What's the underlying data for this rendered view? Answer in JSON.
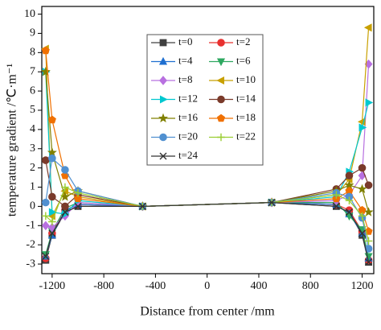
{
  "chart_data": {
    "type": "line",
    "x_label": "Distance from center /mm",
    "y_label": "temperature gradient /℃·m⁻¹",
    "x": [
      -1250,
      -1200,
      -1100,
      -1000,
      -500,
      500,
      1000,
      1100,
      1200,
      1250
    ],
    "xlim": [
      -1280,
      1290
    ],
    "xticks": [
      -1200,
      -800,
      -400,
      0,
      400,
      800,
      1200
    ],
    "ylim": [
      -3.5,
      10.4
    ],
    "yticks": [
      -3,
      -2,
      -1,
      0,
      1,
      2,
      3,
      4,
      5,
      6,
      7,
      8,
      9,
      10
    ],
    "series": [
      {
        "name": "t=0",
        "color": "#404040",
        "marker": "square",
        "values": [
          -2.8,
          -1.5,
          -0.3,
          0.0,
          0,
          0.2,
          0.0,
          -0.3,
          -1.5,
          -2.9
        ]
      },
      {
        "name": "t=2",
        "color": "#e8302f",
        "marker": "circle",
        "values": [
          -2.7,
          -1.4,
          -0.2,
          0.1,
          0,
          0.2,
          0.1,
          -0.2,
          -1.3,
          -2.8
        ]
      },
      {
        "name": "t=4",
        "color": "#1f6fd0",
        "marker": "triangle-up",
        "values": [
          -2.6,
          -1.5,
          -0.2,
          0.1,
          0,
          0.2,
          0.1,
          -0.4,
          -1.4,
          -2.7
        ]
      },
      {
        "name": "t=6",
        "color": "#2ea860",
        "marker": "triangle-down",
        "values": [
          -2.5,
          -1.3,
          -0.1,
          0.2,
          0,
          0.2,
          0.2,
          -0.5,
          -1.2,
          -2.6
        ]
      },
      {
        "name": "t=8",
        "color": "#b870e0",
        "marker": "diamond",
        "values": [
          -1.0,
          -1.1,
          -0.5,
          0.2,
          0,
          0.2,
          0.3,
          0.6,
          1.6,
          7.4
        ]
      },
      {
        "name": "t=10",
        "color": "#c8a000",
        "marker": "triangle-left",
        "values": [
          8.2,
          -0.5,
          0.8,
          0.5,
          0,
          0.2,
          0.6,
          1.4,
          4.4,
          9.3
        ]
      },
      {
        "name": "t=12",
        "color": "#00c8d0",
        "marker": "triangle-right",
        "values": [
          7.0,
          -0.3,
          -0.4,
          0.3,
          0,
          0.2,
          0.5,
          1.8,
          4.1,
          5.4
        ]
      },
      {
        "name": "t=14",
        "color": "#7a3a2a",
        "marker": "circle",
        "values": [
          2.4,
          0.5,
          0.0,
          0.6,
          0,
          0.2,
          0.9,
          1.6,
          2.0,
          1.1
        ]
      },
      {
        "name": "t=16",
        "color": "#808000",
        "marker": "star",
        "values": [
          7.0,
          2.8,
          0.5,
          0.8,
          0,
          0.2,
          0.8,
          1.1,
          0.9,
          -0.3
        ]
      },
      {
        "name": "t=18",
        "color": "#f07000",
        "marker": "pentagon",
        "values": [
          8.1,
          4.5,
          1.6,
          0.4,
          0,
          0.2,
          0.4,
          0.8,
          -0.2,
          -1.3
        ]
      },
      {
        "name": "t=20",
        "color": "#5090d0",
        "marker": "circle",
        "values": [
          0.2,
          2.5,
          1.9,
          0.8,
          0,
          0.2,
          0.7,
          0.5,
          -0.6,
          -2.2
        ]
      },
      {
        "name": "t=22",
        "color": "#9acd32",
        "marker": "plus",
        "values": [
          -0.5,
          -0.8,
          1.0,
          0.7,
          0,
          0.2,
          0.6,
          0.3,
          -0.5,
          -1.8
        ]
      },
      {
        "name": "t=24",
        "color": "#333333",
        "marker": "cross",
        "values": [
          -2.6,
          -1.4,
          -0.3,
          0.0,
          0,
          0.2,
          0.0,
          -0.3,
          -1.4,
          -2.9
        ]
      }
    ]
  }
}
